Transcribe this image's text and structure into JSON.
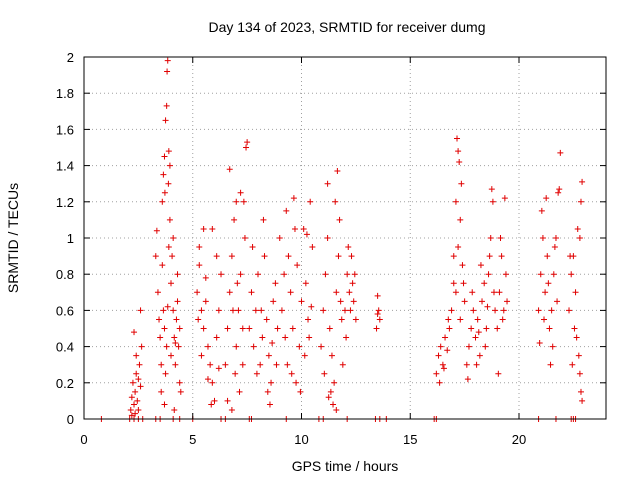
{
  "chart_data": {
    "type": "scatter",
    "title": "Day 134 of 2023, SRMTID for receiver dumg",
    "xlabel": "GPS time / hours",
    "ylabel": "SRMTID / TECUs",
    "xlim": [
      0,
      24
    ],
    "ylim": [
      0,
      2
    ],
    "xticks": [
      0,
      5,
      10,
      15,
      20
    ],
    "xtick_labels": [
      "0",
      "5",
      "10",
      "15",
      "20"
    ],
    "yticks": [
      0,
      0.2,
      0.4,
      0.6,
      0.8,
      1,
      1.2,
      1.4,
      1.6,
      1.8,
      2
    ],
    "ytick_labels": [
      "0",
      "0.2",
      "0.4",
      "0.6",
      "0.8",
      "1",
      "1.2",
      "1.4",
      "1.6",
      "1.8",
      "2"
    ],
    "grid": true,
    "marker": "+",
    "color": "#e00000",
    "series": [
      {
        "name": "SRMTID",
        "points": [
          [
            0.8,
            0
          ],
          [
            2.1,
            0
          ],
          [
            2.3,
            0
          ],
          [
            2.5,
            0
          ],
          [
            2.7,
            0
          ],
          [
            3.3,
            0
          ],
          [
            3.5,
            0
          ],
          [
            4.1,
            0
          ],
          [
            4.4,
            0
          ],
          [
            5.0,
            0
          ],
          [
            6.3,
            0
          ],
          [
            6.5,
            0
          ],
          [
            7.6,
            0
          ],
          [
            7.7,
            0
          ],
          [
            9.3,
            0
          ],
          [
            10.8,
            0
          ],
          [
            11.0,
            0
          ],
          [
            12.1,
            0
          ],
          [
            13.4,
            0
          ],
          [
            13.6,
            0
          ],
          [
            13.9,
            0
          ],
          [
            16.1,
            0
          ],
          [
            16.2,
            0
          ],
          [
            20.9,
            0
          ],
          [
            21.7,
            0
          ],
          [
            22.4,
            0
          ],
          [
            22.5,
            0
          ],
          [
            22.6,
            0
          ],
          [
            2.15,
            0.05
          ],
          [
            2.2,
            0.12
          ],
          [
            2.25,
            0.2
          ],
          [
            2.3,
            0.08
          ],
          [
            2.35,
            0.15
          ],
          [
            2.4,
            0.25
          ],
          [
            2.45,
            0.1
          ],
          [
            2.5,
            0.05
          ],
          [
            2.55,
            0.3
          ],
          [
            2.6,
            0.18
          ],
          [
            2.3,
            0.48
          ],
          [
            2.4,
            0.35
          ],
          [
            2.5,
            0.22
          ],
          [
            2.6,
            0.6
          ],
          [
            2.65,
            0.4
          ],
          [
            2.2,
            0.02
          ],
          [
            2.35,
            0.03
          ],
          [
            3.3,
            0.9
          ],
          [
            3.35,
            1.04
          ],
          [
            3.4,
            0.7
          ],
          [
            3.45,
            0.55
          ],
          [
            3.5,
            0.45
          ],
          [
            3.55,
            0.3
          ],
          [
            3.6,
            0.85
          ],
          [
            3.65,
            0.6
          ],
          [
            3.7,
            0.5
          ],
          [
            3.75,
            0.25
          ],
          [
            3.8,
            0.4
          ],
          [
            3.85,
            0.62
          ],
          [
            3.9,
            0.95
          ],
          [
            3.95,
            1.1
          ],
          [
            3.55,
            0.15
          ],
          [
            3.7,
            0.08
          ],
          [
            3.6,
            1.2
          ],
          [
            3.65,
            1.35
          ],
          [
            3.7,
            1.45
          ],
          [
            3.75,
            1.65
          ],
          [
            3.8,
            1.73
          ],
          [
            3.82,
            1.92
          ],
          [
            3.85,
            1.98
          ],
          [
            3.9,
            1.48
          ],
          [
            3.95,
            1.4
          ],
          [
            3.72,
            1.25
          ],
          [
            3.88,
            1.3
          ],
          [
            4.0,
            0.75
          ],
          [
            4.05,
            0.9
          ],
          [
            4.1,
            1.0
          ],
          [
            4.15,
            0.45
          ],
          [
            4.2,
            0.3
          ],
          [
            4.25,
            0.55
          ],
          [
            4.3,
            0.65
          ],
          [
            4.35,
            0.4
          ],
          [
            4.4,
            0.2
          ],
          [
            4.45,
            0.15
          ],
          [
            4.0,
            0.35
          ],
          [
            4.1,
            0.6
          ],
          [
            4.2,
            0.42
          ],
          [
            4.3,
            0.8
          ],
          [
            4.4,
            0.5
          ],
          [
            4.15,
            0.05
          ],
          [
            5.2,
            0.7
          ],
          [
            5.3,
            0.85
          ],
          [
            5.4,
            0.6
          ],
          [
            5.5,
            0.5
          ],
          [
            5.6,
            0.78
          ],
          [
            5.7,
            0.4
          ],
          [
            5.8,
            0.3
          ],
          [
            5.9,
            0.2
          ],
          [
            6.0,
            0.1
          ],
          [
            6.1,
            0.45
          ],
          [
            6.2,
            0.6
          ],
          [
            6.3,
            0.8
          ],
          [
            5.3,
            0.95
          ],
          [
            5.5,
            1.05
          ],
          [
            5.9,
            1.05
          ],
          [
            6.1,
            0.9
          ],
          [
            5.4,
            0.35
          ],
          [
            5.7,
            0.22
          ],
          [
            5.85,
            0.08
          ],
          [
            6.2,
            0.28
          ],
          [
            5.25,
            0.55
          ],
          [
            5.6,
            0.65
          ],
          [
            6.5,
            0.3
          ],
          [
            6.6,
            0.5
          ],
          [
            6.7,
            0.7
          ],
          [
            6.8,
            0.9
          ],
          [
            6.9,
            1.1
          ],
          [
            7.0,
            1.2
          ],
          [
            6.7,
            1.38
          ],
          [
            6.6,
            0.1
          ],
          [
            6.8,
            0.05
          ],
          [
            7.0,
            0.4
          ],
          [
            7.1,
            0.6
          ],
          [
            7.2,
            0.8
          ],
          [
            7.3,
            0.5
          ],
          [
            7.4,
            1.0
          ],
          [
            7.45,
            1.5
          ],
          [
            7.5,
            1.53
          ],
          [
            7.35,
            1.2
          ],
          [
            7.2,
            1.25
          ],
          [
            6.95,
            0.25
          ],
          [
            7.15,
            0.15
          ],
          [
            7.3,
            0.3
          ],
          [
            6.85,
            0.6
          ],
          [
            7.05,
            0.75
          ],
          [
            7.6,
            0.5
          ],
          [
            7.7,
            0.7
          ],
          [
            7.8,
            0.4
          ],
          [
            7.9,
            0.6
          ],
          [
            8.0,
            0.8
          ],
          [
            8.1,
            0.3
          ],
          [
            8.2,
            0.45
          ],
          [
            8.3,
            0.9
          ],
          [
            8.4,
            0.55
          ],
          [
            8.5,
            0.35
          ],
          [
            8.6,
            0.2
          ],
          [
            8.7,
            0.65
          ],
          [
            8.8,
            0.75
          ],
          [
            8.9,
            0.5
          ],
          [
            9.0,
            1.0
          ],
          [
            7.75,
            0.95
          ],
          [
            8.25,
            1.1
          ],
          [
            8.55,
            0.08
          ],
          [
            8.45,
            0.15
          ],
          [
            7.95,
            0.25
          ],
          [
            8.15,
            0.6
          ],
          [
            8.65,
            0.42
          ],
          [
            8.85,
            0.3
          ],
          [
            9.1,
            0.6
          ],
          [
            9.2,
            0.8
          ],
          [
            9.3,
            1.15
          ],
          [
            9.4,
            0.9
          ],
          [
            9.5,
            0.7
          ],
          [
            9.6,
            0.5
          ],
          [
            9.7,
            1.05
          ],
          [
            9.8,
            0.85
          ],
          [
            9.9,
            0.4
          ],
          [
            10.0,
            0.65
          ],
          [
            10.1,
            1.05
          ],
          [
            10.2,
            0.75
          ],
          [
            10.3,
            0.55
          ],
          [
            10.4,
            1.2
          ],
          [
            10.5,
            0.95
          ],
          [
            9.35,
            0.3
          ],
          [
            9.55,
            0.25
          ],
          [
            9.75,
            0.2
          ],
          [
            9.95,
            0.15
          ],
          [
            10.15,
            0.35
          ],
          [
            10.35,
            0.45
          ],
          [
            9.25,
            0.45
          ],
          [
            9.65,
            1.22
          ],
          [
            10.25,
            1.02
          ],
          [
            10.45,
            0.62
          ],
          [
            10.9,
            0.4
          ],
          [
            11.0,
            0.6
          ],
          [
            11.1,
            0.8
          ],
          [
            11.2,
            1.0
          ],
          [
            11.3,
            0.5
          ],
          [
            11.4,
            0.35
          ],
          [
            11.5,
            0.2
          ],
          [
            11.6,
            0.7
          ],
          [
            11.7,
            0.9
          ],
          [
            11.8,
            0.65
          ],
          [
            11.9,
            0.3
          ],
          [
            11.2,
            1.3
          ],
          [
            11.55,
            1.2
          ],
          [
            11.65,
            1.37
          ],
          [
            11.75,
            1.1
          ],
          [
            11.35,
            0.15
          ],
          [
            11.45,
            0.08
          ],
          [
            11.85,
            0.55
          ],
          [
            11.05,
            0.25
          ],
          [
            11.25,
            0.12
          ],
          [
            11.6,
            0.05
          ],
          [
            12.0,
            0.6
          ],
          [
            12.1,
            0.8
          ],
          [
            12.2,
            0.7
          ],
          [
            12.3,
            0.9
          ],
          [
            12.4,
            0.65
          ],
          [
            12.5,
            0.55
          ],
          [
            12.15,
            0.95
          ],
          [
            12.35,
            0.75
          ],
          [
            12.05,
            0.45
          ],
          [
            12.25,
            0.6
          ],
          [
            12.45,
            0.8
          ],
          [
            13.5,
            0.68
          ],
          [
            13.55,
            0.6
          ],
          [
            13.6,
            0.55
          ],
          [
            13.45,
            0.5
          ],
          [
            13.5,
            0.58
          ],
          [
            16.2,
            0.25
          ],
          [
            16.3,
            0.35
          ],
          [
            16.4,
            0.4
          ],
          [
            16.5,
            0.3
          ],
          [
            16.6,
            0.45
          ],
          [
            16.7,
            0.38
          ],
          [
            16.8,
            0.5
          ],
          [
            16.9,
            0.6
          ],
          [
            17.0,
            0.75
          ],
          [
            16.35,
            0.2
          ],
          [
            16.55,
            0.28
          ],
          [
            16.75,
            0.55
          ],
          [
            17.0,
            0.9
          ],
          [
            17.1,
            1.2
          ],
          [
            17.15,
            1.55
          ],
          [
            17.2,
            1.48
          ],
          [
            17.25,
            1.42
          ],
          [
            17.3,
            1.1
          ],
          [
            17.4,
            0.85
          ],
          [
            17.5,
            0.65
          ],
          [
            17.1,
            0.7
          ],
          [
            17.3,
            0.55
          ],
          [
            17.2,
            0.95
          ],
          [
            17.35,
            1.3
          ],
          [
            17.45,
            0.75
          ],
          [
            17.6,
            0.3
          ],
          [
            17.7,
            0.4
          ],
          [
            17.8,
            0.5
          ],
          [
            17.9,
            0.6
          ],
          [
            18.0,
            0.45
          ],
          [
            18.1,
            0.55
          ],
          [
            18.2,
            0.35
          ],
          [
            18.3,
            0.65
          ],
          [
            18.4,
            0.75
          ],
          [
            18.5,
            0.5
          ],
          [
            18.6,
            0.8
          ],
          [
            18.7,
            1.0
          ],
          [
            18.75,
            1.27
          ],
          [
            18.8,
            1.2
          ],
          [
            18.9,
            0.6
          ],
          [
            17.65,
            0.22
          ],
          [
            17.85,
            0.7
          ],
          [
            18.05,
            0.3
          ],
          [
            18.25,
            0.85
          ],
          [
            18.45,
            0.4
          ],
          [
            18.65,
            0.9
          ],
          [
            18.85,
            0.7
          ],
          [
            18.55,
            0.62
          ],
          [
            18.15,
            0.48
          ],
          [
            19.0,
            0.5
          ],
          [
            19.1,
            0.7
          ],
          [
            19.2,
            0.9
          ],
          [
            19.3,
            0.6
          ],
          [
            19.4,
            0.8
          ],
          [
            19.05,
            0.25
          ],
          [
            19.15,
            1.0
          ],
          [
            19.25,
            0.55
          ],
          [
            19.35,
            1.22
          ],
          [
            19.45,
            0.65
          ],
          [
            20.9,
            0.6
          ],
          [
            21.0,
            0.8
          ],
          [
            21.1,
            1.0
          ],
          [
            21.2,
            0.7
          ],
          [
            21.3,
            0.9
          ],
          [
            21.4,
            0.5
          ],
          [
            21.5,
            0.6
          ],
          [
            21.6,
            0.8
          ],
          [
            21.7,
            1.0
          ],
          [
            21.8,
            1.25
          ],
          [
            21.85,
            1.27
          ],
          [
            21.9,
            1.47
          ],
          [
            21.05,
            1.15
          ],
          [
            21.25,
            1.22
          ],
          [
            21.45,
            0.3
          ],
          [
            21.55,
            0.4
          ],
          [
            21.65,
            0.95
          ],
          [
            20.95,
            0.42
          ],
          [
            21.15,
            0.55
          ],
          [
            21.35,
            0.75
          ],
          [
            21.75,
            0.65
          ],
          [
            22.3,
            0.6
          ],
          [
            22.4,
            0.8
          ],
          [
            22.5,
            0.9
          ],
          [
            22.6,
            0.7
          ],
          [
            22.7,
            1.05
          ],
          [
            22.8,
            1.0
          ],
          [
            22.9,
            1.31
          ],
          [
            22.85,
            1.2
          ],
          [
            22.55,
            0.5
          ],
          [
            22.65,
            0.45
          ],
          [
            22.75,
            0.35
          ],
          [
            22.8,
            0.25
          ],
          [
            22.85,
            0.15
          ],
          [
            22.9,
            0.1
          ],
          [
            22.45,
            0.3
          ],
          [
            22.35,
            0.9
          ]
        ]
      }
    ]
  }
}
